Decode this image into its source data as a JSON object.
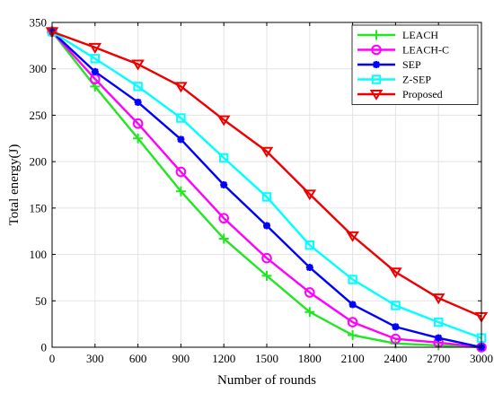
{
  "chart_data": {
    "type": "line",
    "title": "",
    "xlabel": "Number of rounds",
    "ylabel": "Total energy(J)",
    "xlim": [
      0,
      3000
    ],
    "ylim": [
      0,
      350
    ],
    "xticks": [
      0,
      300,
      600,
      900,
      1200,
      1500,
      1800,
      2100,
      2400,
      2700,
      3000
    ],
    "yticks": [
      0,
      50,
      100,
      150,
      200,
      250,
      300,
      350
    ],
    "grid": true,
    "legend_position": "top-right",
    "x": [
      0,
      300,
      600,
      900,
      1200,
      1500,
      1800,
      2100,
      2400,
      2700,
      3000
    ],
    "series": [
      {
        "name": "LEACH",
        "color": "#22e622",
        "marker": "plus",
        "values": [
          340,
          281,
          225,
          168,
          117,
          77,
          38,
          13,
          4,
          2,
          0
        ]
      },
      {
        "name": "LEACH-C",
        "color": "#ff00ff",
        "marker": "circle",
        "values": [
          340,
          289,
          241,
          189,
          139,
          96,
          59,
          27,
          9,
          5,
          0
        ]
      },
      {
        "name": "SEP",
        "color": "#0000ff",
        "marker": "star",
        "values": [
          340,
          297,
          264,
          224,
          175,
          131,
          86,
          46,
          22,
          10,
          0
        ]
      },
      {
        "name": "Z-SEP",
        "color": "#00ffff",
        "marker": "square",
        "values": [
          340,
          311,
          281,
          247,
          204,
          162,
          110,
          73,
          45,
          27,
          10
        ]
      },
      {
        "name": "Proposed",
        "color": "#ee0000",
        "marker": "triangle-down",
        "values": [
          340,
          323,
          305,
          281,
          245,
          211,
          165,
          120,
          81,
          53,
          33
        ]
      }
    ]
  }
}
